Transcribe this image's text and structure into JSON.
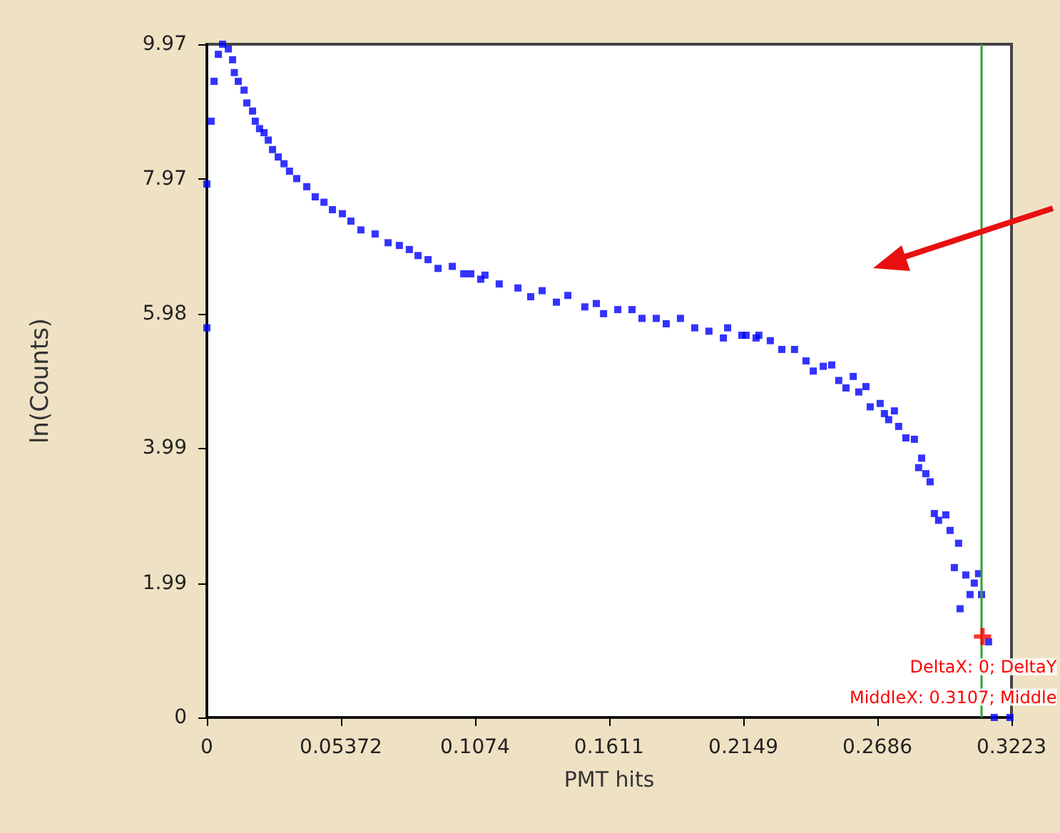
{
  "chart_data": {
    "type": "scatter",
    "xlabel": "PMT hits",
    "ylabel": "ln(Counts)",
    "xlim": [
      0,
      0.3223
    ],
    "ylim": [
      0,
      9.97
    ],
    "xticks": [
      0,
      0.05372,
      0.1074,
      0.1611,
      0.2149,
      0.2686,
      0.3223
    ],
    "yticks": [
      0,
      1.99,
      3.99,
      5.98,
      7.97,
      9.97
    ],
    "grid": false,
    "series": [
      {
        "color": "#0000ff",
        "marker": "square",
        "x": [
          0,
          0,
          0.0017,
          0.0029,
          0.0046,
          0.0063,
          0.0086,
          0.0103,
          0.011,
          0.0126,
          0.0149,
          0.016,
          0.0183,
          0.0194,
          0.0211,
          0.0229,
          0.0246,
          0.0263,
          0.0286,
          0.0309,
          0.0331,
          0.036,
          0.04,
          0.0434,
          0.0469,
          0.0503,
          0.0543,
          0.0577,
          0.0617,
          0.0674,
          0.0726,
          0.0771,
          0.0811,
          0.0846,
          0.0886,
          0.0926,
          0.0983,
          0.1029,
          0.1057,
          0.1097,
          0.1114,
          0.1171,
          0.1246,
          0.1297,
          0.1343,
          0.14,
          0.1446,
          0.1514,
          0.156,
          0.1589,
          0.1646,
          0.1703,
          0.1743,
          0.18,
          0.184,
          0.1897,
          0.1954,
          0.2011,
          0.2069,
          0.2086,
          0.2143,
          0.216,
          0.22,
          0.2211,
          0.2257,
          0.2303,
          0.2354,
          0.24,
          0.2429,
          0.2469,
          0.2503,
          0.2531,
          0.256,
          0.2589,
          0.2611,
          0.264,
          0.2657,
          0.2697,
          0.2714,
          0.2731,
          0.2754,
          0.2771,
          0.28,
          0.2834,
          0.2851,
          0.2863,
          0.288,
          0.2897,
          0.2914,
          0.2931,
          0.296,
          0.2977,
          0.2994,
          0.3011,
          0.3017,
          0.304,
          0.3057,
          0.3074,
          0.3091,
          0.3103,
          0.3131,
          0.3154,
          0.3217
        ],
        "values": [
          5.77,
          7.9,
          8.83,
          9.42,
          9.82,
          9.97,
          9.9,
          9.74,
          9.55,
          9.42,
          9.29,
          9.1,
          8.98,
          8.83,
          8.72,
          8.66,
          8.55,
          8.41,
          8.3,
          8.2,
          8.09,
          7.98,
          7.86,
          7.71,
          7.63,
          7.52,
          7.46,
          7.35,
          7.22,
          7.16,
          7.03,
          6.99,
          6.93,
          6.84,
          6.78,
          6.65,
          6.68,
          6.57,
          6.57,
          6.49,
          6.55,
          6.42,
          6.36,
          6.23,
          6.32,
          6.15,
          6.25,
          6.08,
          6.13,
          5.98,
          6.04,
          6.04,
          5.91,
          5.91,
          5.83,
          5.91,
          5.77,
          5.72,
          5.62,
          5.77,
          5.66,
          5.66,
          5.62,
          5.66,
          5.58,
          5.45,
          5.45,
          5.28,
          5.13,
          5.2,
          5.22,
          4.99,
          4.88,
          5.05,
          4.82,
          4.9,
          4.6,
          4.65,
          4.5,
          4.41,
          4.54,
          4.31,
          4.14,
          4.12,
          3.7,
          3.84,
          3.61,
          3.49,
          3.02,
          2.92,
          3.0,
          2.77,
          2.22,
          2.58,
          1.61,
          2.11,
          1.82,
          1.99,
          2.13,
          1.82,
          1.12,
          0,
          0
        ]
      },
      {
        "color": "#ff0000",
        "marker": "cross",
        "x": [
          0.3107
        ],
        "values": [
          1.2
        ]
      }
    ],
    "ref_lines": [
      {
        "axis": "x",
        "value": 0.3107,
        "color": "#33a033"
      }
    ],
    "annotations": [
      {
        "text": "DeltaX: 0; DeltaY",
        "x": 0.3107,
        "y": 0.75
      },
      {
        "text": "MiddleX: 0.3107; Middle",
        "x": 0.3107,
        "y": 0.3
      }
    ]
  }
}
